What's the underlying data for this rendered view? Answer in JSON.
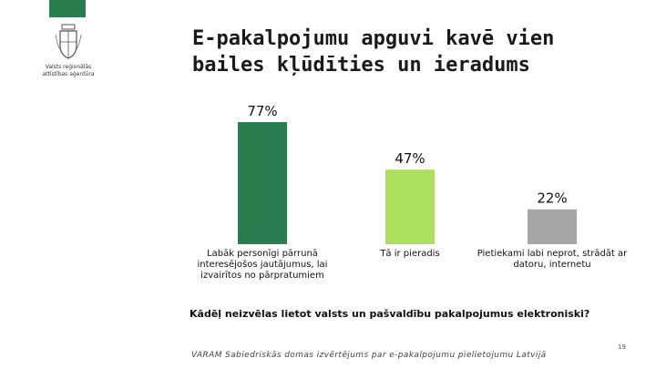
{
  "brand": {
    "accent": "#2a7d4f",
    "org_name": "Valsts reģionālās attīstības aģentūra"
  },
  "title": "E-pakalpojumu apguvi kavē vien bailes kļūdīties un ieradums",
  "question": "Kādēļ neizvēlas lietot valsts un pašvaldību pakalpojumus elektroniski?",
  "source": "VARAM Sabiedriskās domas izvērtējums par e-pakalpojumu pielietojumu Latvijā",
  "page_number": "19",
  "chart_data": {
    "type": "bar",
    "categories": [
      "Labāk personīgi pārrunā interesējošos jautājumus, lai izvairītos no pārpratumiem",
      "Tā ir pieradis",
      "Pietiekami labi neprot, strādāt ar datoru, internetu"
    ],
    "values": [
      77,
      47,
      22
    ],
    "value_labels": [
      "77%",
      "47%",
      "22%"
    ],
    "colors": [
      "#2a7d4f",
      "#addf5e",
      "#a6a6a6"
    ],
    "ylim": [
      0,
      100
    ],
    "grid": false,
    "legend": "none"
  }
}
